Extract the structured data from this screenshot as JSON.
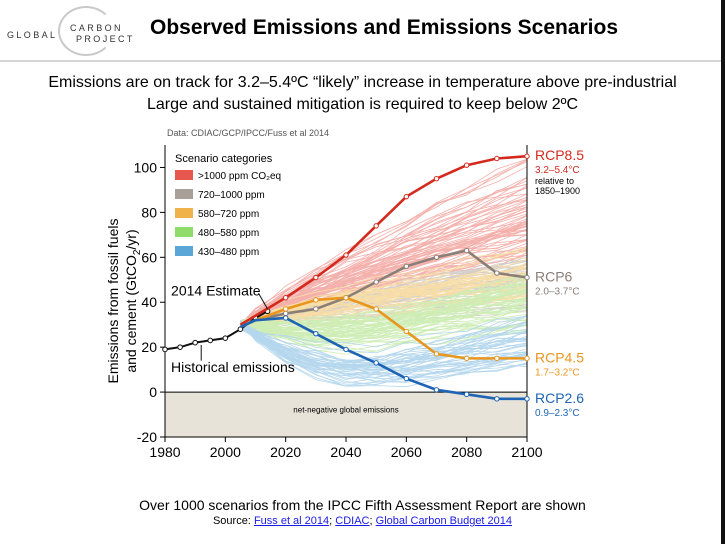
{
  "header": {
    "logo_left": "GLOBAL",
    "logo_right_line1": "CARBON",
    "logo_right_line2": "PROJECT",
    "title": "Observed Emissions and Emissions Scenarios"
  },
  "subtitle_line1": "Emissions are on track for 3.2–5.4ºC “likely” increase in temperature above pre-industrial",
  "subtitle_line2": "Large and sustained mitigation is required to keep below 2ºC",
  "data_note": "Data: CDIAC/GCP/IPCC/Fuss et al 2014",
  "footer": {
    "line1": "Over 1000 scenarios from the IPCC Fifth Assessment Report are shown",
    "source_prefix": "Source:",
    "link1": "Fuss et al 2014",
    "link2": "CDIAC",
    "link3": "Global Carbon Budget 2014"
  },
  "chart_data": {
    "type": "line",
    "ylabel_line1": "Emissions from fossil fuels",
    "ylabel_line2": "and cement (GtCO",
    "ylabel_sub": "2",
    "ylabel_end": "/yr)",
    "xlim": [
      1980,
      2100
    ],
    "ylim": [
      -20,
      110
    ],
    "x_ticks": [
      1980,
      2000,
      2020,
      2040,
      2060,
      2080,
      2100
    ],
    "y_ticks": [
      -20,
      0,
      20,
      40,
      60,
      80,
      100
    ],
    "legend_title": "Scenario categories",
    "legend": [
      {
        "label": ">1000 ppm CO₂eq",
        "color": "#e8574e"
      },
      {
        "label": "720–1000 ppm",
        "color": "#a79f98"
      },
      {
        "label": "580–720 ppm",
        "color": "#f0b24a"
      },
      {
        "label": "480–580 ppm",
        "color": "#8fdc6a"
      },
      {
        "label": "430–480 ppm",
        "color": "#5aa6d6"
      }
    ],
    "annotations": {
      "estimate": "2014 Estimate",
      "historical": "Historical emissions",
      "net_negative": "net-negative global emissions",
      "relative_line1": "relative to",
      "relative_line2": "1850–1900"
    },
    "historical": {
      "x": [
        1980,
        1985,
        1990,
        1995,
        2000,
        2005,
        2010,
        2014
      ],
      "y": [
        19,
        20,
        22,
        23,
        24,
        28,
        33,
        36
      ]
    },
    "series": [
      {
        "name": "RCP8.5",
        "range": "3.2–5.4°C",
        "color": "#d42a1e",
        "x": [
          2005,
          2010,
          2020,
          2030,
          2040,
          2050,
          2060,
          2070,
          2080,
          2090,
          2100
        ],
        "y": [
          30,
          34,
          42,
          51,
          61,
          74,
          87,
          95,
          101,
          104,
          105
        ]
      },
      {
        "name": "RCP6",
        "range": "2.0–3.7°C",
        "color": "#8a7f77",
        "x": [
          2005,
          2010,
          2020,
          2030,
          2040,
          2050,
          2060,
          2070,
          2080,
          2090,
          2100
        ],
        "y": [
          29,
          32,
          35,
          37,
          42,
          49,
          56,
          60,
          63,
          53,
          51
        ]
      },
      {
        "name": "RCP4.5",
        "range": "1.7–3.2°C",
        "color": "#e8961e",
        "x": [
          2005,
          2010,
          2020,
          2030,
          2040,
          2050,
          2060,
          2070,
          2080,
          2090,
          2100
        ],
        "y": [
          29,
          32,
          37,
          41,
          42,
          37,
          27,
          17,
          15,
          15,
          15
        ]
      },
      {
        "name": "RCP2.6",
        "range": "0.9–2.3°C",
        "color": "#1f64b4",
        "x": [
          2005,
          2010,
          2020,
          2030,
          2040,
          2050,
          2060,
          2070,
          2080,
          2090,
          2100
        ],
        "y": [
          29,
          32,
          33,
          26,
          19,
          13,
          6,
          1,
          -1,
          -3,
          -3
        ]
      }
    ]
  }
}
